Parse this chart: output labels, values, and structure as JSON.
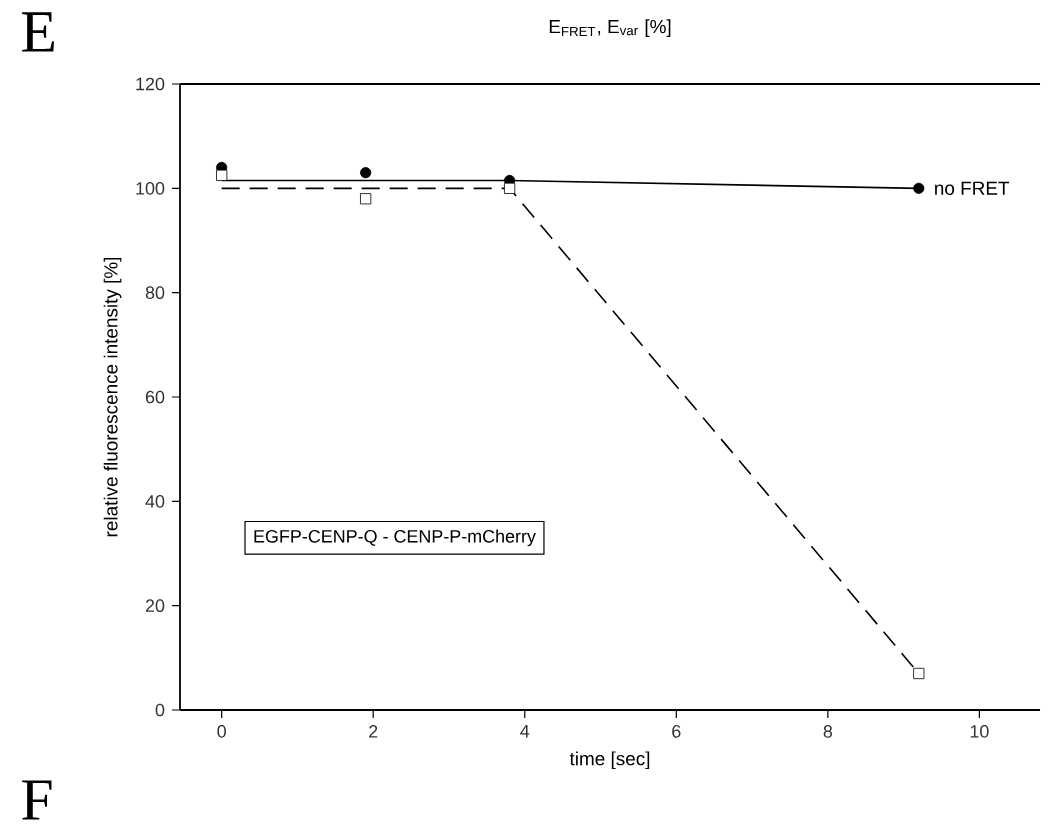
{
  "chart_data": {
    "type": "scatter",
    "title": "E$_{FRET}$, E$_{var}$ [%]",
    "xlabel": "time [sec]",
    "ylabel": "relative fluorescence intensity [%]",
    "xlim": [
      -0.55,
      10.8
    ],
    "ylim": [
      0,
      120
    ],
    "xticks": [
      0,
      2,
      4,
      6,
      8,
      10
    ],
    "yticks": [
      0,
      20,
      40,
      60,
      80,
      100,
      120
    ],
    "annotations": [
      "E",
      "F",
      "EGFP-CENP-Q - CENP-P-mCherry"
    ],
    "series": [
      {
        "name": "no FRET",
        "marker": "circle",
        "color": "#000000",
        "x": [
          0,
          1.9,
          3.8,
          9.2
        ],
        "values": [
          104,
          103,
          101.5,
          100
        ]
      },
      {
        "type": "line",
        "marker": "none",
        "line_style": "solid",
        "color": "#000000",
        "x": [
          0,
          3.8,
          9.2
        ],
        "values": [
          101.5,
          101.5,
          100
        ]
      },
      {
        "marker": "square",
        "color": "#000000",
        "x": [
          0,
          1.9,
          3.8,
          9.2
        ],
        "values": [
          102.5,
          98,
          100,
          7
        ]
      },
      {
        "type": "line",
        "marker": "none",
        "line_style": "dashed",
        "color": "#000000",
        "x": [
          0,
          3.8,
          9.2
        ],
        "values": [
          100,
          100,
          7
        ]
      }
    ]
  }
}
